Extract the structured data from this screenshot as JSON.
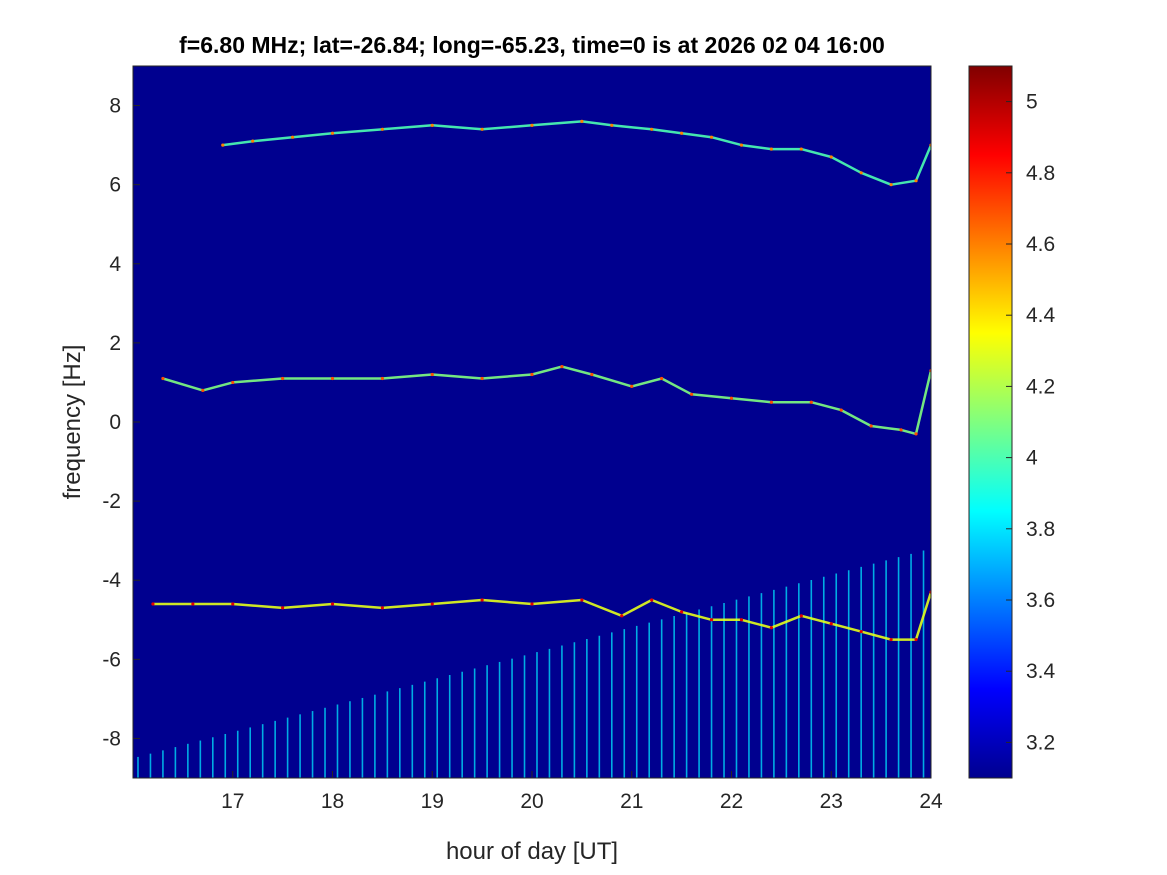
{
  "chart_data": {
    "type": "heatmap",
    "title": "f=6.80 MHz;  lat=-26.84; long=-65.23, time=0 is at 2026 02 04 16:00",
    "xlabel": "hour of day [UT]",
    "ylabel": "frequency [Hz]",
    "xlim": [
      16,
      24
    ],
    "ylim": [
      -9,
      9
    ],
    "x_ticks": [
      17,
      18,
      19,
      20,
      21,
      22,
      23,
      24
    ],
    "x_tick_labels": [
      "17",
      "18",
      "19",
      "20",
      "21",
      "22",
      "23",
      "24"
    ],
    "y_ticks": [
      8,
      6,
      4,
      2,
      0,
      -2,
      -4,
      -6,
      -8
    ],
    "y_tick_labels": [
      "8",
      "6",
      "4",
      "2",
      "0",
      "-2",
      "-4",
      "-6",
      "-8"
    ],
    "colorbar": {
      "colormap": "jet",
      "limits": [
        3.1,
        5.1
      ],
      "ticks": [
        5,
        4.8,
        4.6,
        4.4,
        4.2,
        4,
        3.8,
        3.6,
        3.4,
        3.2
      ],
      "tick_labels": [
        "5",
        "4.8",
        "4.6",
        "4.4",
        "4.2",
        "4",
        "3.8",
        "3.6",
        "3.4",
        "3.2"
      ]
    },
    "background_value": 3.15,
    "traces": [
      {
        "x": [
          16.9,
          17.2,
          17.6,
          18.0,
          18.5,
          19.0,
          19.5,
          20.0,
          20.5,
          20.8,
          21.2,
          21.5,
          21.8,
          22.1,
          22.4,
          22.7,
          23.0,
          23.3,
          23.6,
          23.85,
          24.0
        ],
        "y": [
          7.0,
          7.1,
          7.2,
          7.3,
          7.4,
          7.5,
          7.4,
          7.5,
          7.6,
          7.5,
          7.4,
          7.3,
          7.2,
          7.0,
          6.9,
          6.9,
          6.7,
          6.3,
          6.0,
          6.1,
          7.0
        ],
        "value": 4.0
      },
      {
        "x": [
          16.3,
          16.7,
          17.0,
          17.5,
          18.0,
          18.5,
          19.0,
          19.5,
          20.0,
          20.3,
          20.6,
          21.0,
          21.3,
          21.6,
          22.0,
          22.4,
          22.8,
          23.1,
          23.4,
          23.7,
          23.85,
          24.0
        ],
        "y": [
          1.1,
          0.8,
          1.0,
          1.1,
          1.1,
          1.1,
          1.2,
          1.1,
          1.2,
          1.4,
          1.2,
          0.9,
          1.1,
          0.7,
          0.6,
          0.5,
          0.5,
          0.3,
          -0.1,
          -0.2,
          -0.3,
          1.3
        ],
        "value": 4.1
      },
      {
        "x": [
          16.2,
          16.6,
          17.0,
          17.5,
          18.0,
          18.5,
          19.0,
          19.5,
          20.0,
          20.5,
          20.9,
          21.2,
          21.5,
          21.8,
          22.1,
          22.4,
          22.7,
          23.0,
          23.3,
          23.6,
          23.85,
          24.0
        ],
        "y": [
          -4.6,
          -4.6,
          -4.6,
          -4.7,
          -4.6,
          -4.7,
          -4.6,
          -4.5,
          -4.6,
          -4.5,
          -4.9,
          -4.5,
          -4.8,
          -5.0,
          -5.0,
          -5.2,
          -4.9,
          -5.1,
          -5.3,
          -5.5,
          -5.5,
          -4.3
        ],
        "value": 4.3
      }
    ],
    "stripes": {
      "start_hour": 16.05,
      "spacing_hours": 0.125,
      "bottom": -9.0,
      "top_at_start": -8.5,
      "top_at_end": -3.2,
      "value": 3.8
    }
  }
}
